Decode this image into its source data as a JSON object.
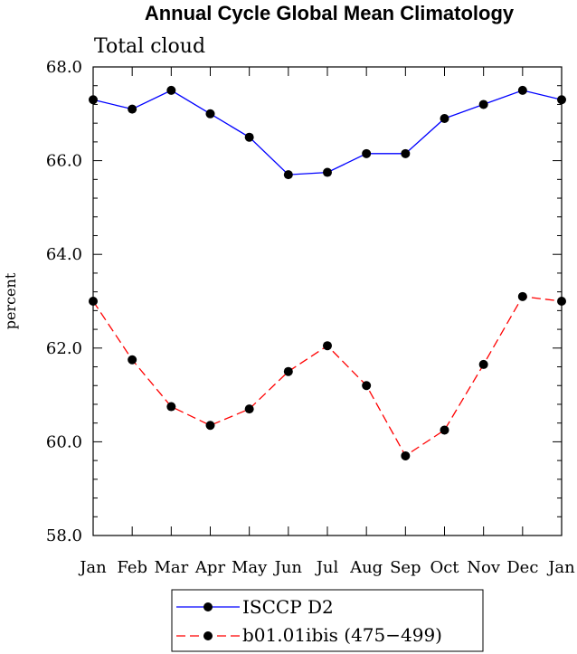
{
  "chart_data": {
    "type": "line",
    "title": "Annual Cycle Global Mean Climatology",
    "subtitle": "Total cloud",
    "ylabel": "percent",
    "xlabel": "",
    "categories": [
      "Jan",
      "Feb",
      "Mar",
      "Apr",
      "May",
      "Jun",
      "Jul",
      "Aug",
      "Sep",
      "Oct",
      "Nov",
      "Dec",
      "Jan"
    ],
    "ylim": [
      58.0,
      68.0
    ],
    "y_major_ticks": [
      58.0,
      60.0,
      62.0,
      64.0,
      66.0,
      68.0
    ],
    "y_tick_labels": [
      "58.0",
      "60.0",
      "62.0",
      "64.0",
      "66.0",
      "68.0"
    ],
    "legend_position": "bottom-center",
    "grid": false,
    "series": [
      {
        "name": "ISCCP D2",
        "color": "#0000ff",
        "dash": "solid",
        "values": [
          67.3,
          67.1,
          67.5,
          67.0,
          66.5,
          65.7,
          65.75,
          66.15,
          66.15,
          66.9,
          67.2,
          67.5,
          67.3
        ]
      },
      {
        "name": "b01.01ibis (475−499)",
        "color": "#ff0000",
        "dash": "dashed",
        "values": [
          63.0,
          61.75,
          60.75,
          60.35,
          60.7,
          61.5,
          62.05,
          61.2,
          59.7,
          60.25,
          61.65,
          63.1,
          63.0
        ]
      }
    ]
  }
}
